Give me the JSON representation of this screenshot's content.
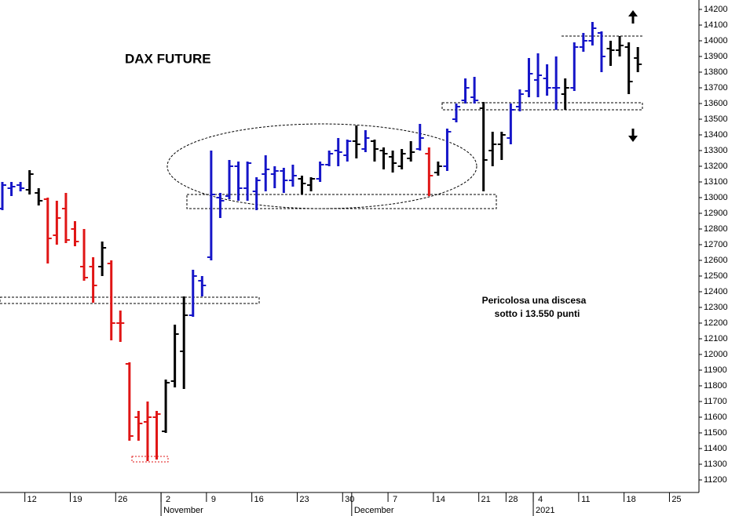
{
  "chart_data": {
    "type": "ohlc",
    "title": "DAX FUTURE",
    "annotation": [
      "Pericolosa una discesa",
      "sotto i 13.550 punti"
    ],
    "categories": [
      null,
      null,
      null,
      "12",
      null,
      null,
      null,
      null,
      "19",
      null,
      null,
      null,
      null,
      "26",
      null,
      null,
      null,
      null,
      "2",
      null,
      null,
      null,
      null,
      "9",
      null,
      null,
      null,
      null,
      "16",
      null,
      null,
      null,
      null,
      "23",
      null,
      null,
      null,
      null,
      "30",
      null,
      null,
      null,
      null,
      "7",
      null,
      null,
      null,
      null,
      "14",
      null,
      null,
      null,
      null,
      "21",
      null,
      null,
      "28",
      null,
      null,
      "4",
      null,
      null,
      null,
      null,
      "11",
      null,
      null,
      null,
      null,
      "18",
      null,
      null,
      null,
      null,
      "25"
    ],
    "groups": [
      {
        "label": "November",
        "start": 18
      },
      {
        "label": "December",
        "start": 39
      },
      {
        "label": "2021",
        "start": 59
      }
    ],
    "open": [
      12930,
      13060,
      13080,
      13050,
      13030,
      12990,
      12760,
      12930,
      12800,
      12560,
      12560,
      12560,
      12580,
      12200,
      11940,
      11600,
      11570,
      11600,
      11510,
      11830,
      12020,
      12250,
      12470,
      12620,
      13000,
      13010,
      13200,
      13060,
      13040,
      13150,
      13150,
      13170,
      13110,
      13120,
      13080,
      13120,
      13210,
      13300,
      13270,
      13360,
      13310,
      13360,
      13300,
      13260,
      13200,
      13250,
      13310,
      13280,
      13160,
      13200,
      13500,
      13620,
      13640,
      13570,
      13300,
      13340,
      13380,
      13580,
      13680,
      13750,
      13760,
      13700,
      13660,
      13700,
      13960,
      14000,
      14050,
      13950,
      13940,
      13960,
      13890,
      null,
      null,
      null,
      null
    ],
    "high": [
      13100,
      13100,
      13100,
      13175,
      13060,
      13000,
      12980,
      13030,
      12850,
      12800,
      12620,
      12720,
      12600,
      12280,
      11950,
      11640,
      11700,
      11640,
      11840,
      12190,
      12370,
      12540,
      12500,
      13300,
      13030,
      13240,
      13230,
      13230,
      13130,
      13270,
      13200,
      13190,
      13210,
      13140,
      13130,
      13230,
      13300,
      13380,
      13370,
      13460,
      13430,
      13370,
      13320,
      13300,
      13310,
      13360,
      13470,
      13320,
      13230,
      13440,
      13600,
      13760,
      13770,
      13610,
      13420,
      13420,
      13600,
      13690,
      13890,
      13920,
      13850,
      13900,
      13760,
      13990,
      14050,
      14120,
      14060,
      14000,
      14030,
      13990,
      13960,
      null,
      null,
      null,
      null
    ],
    "low": [
      12920,
      13010,
      13040,
      13020,
      12950,
      12580,
      12700,
      12710,
      12690,
      12470,
      12330,
      12500,
      12090,
      12080,
      11450,
      11450,
      11320,
      11330,
      11500,
      11790,
      11780,
      12240,
      12370,
      12600,
      12870,
      12990,
      12980,
      12980,
      12920,
      13040,
      13060,
      13030,
      13070,
      13020,
      13040,
      13100,
      13200,
      13200,
      13230,
      13250,
      13290,
      13230,
      13180,
      13160,
      13180,
      13230,
      13300,
      13010,
      13140,
      13170,
      13480,
      13600,
      13600,
      13040,
      13200,
      13240,
      13340,
      13550,
      13640,
      13640,
      13650,
      13560,
      13560,
      13680,
      13930,
      13970,
      13800,
      13840,
      13900,
      13660,
      13800,
      null,
      null,
      null,
      null
    ],
    "close": [
      13080,
      13070,
      13060,
      13150,
      12980,
      12740,
      12870,
      12730,
      12720,
      12490,
      12440,
      12680,
      12200,
      12200,
      11480,
      11560,
      11600,
      11620,
      11820,
      12130,
      12250,
      12500,
      12440,
      13020,
      12980,
      13200,
      13060,
      13220,
      13110,
      13180,
      13170,
      13110,
      13140,
      13090,
      13120,
      13210,
      13280,
      13290,
      13360,
      13340,
      13380,
      13310,
      13280,
      13220,
      13280,
      13290,
      13380,
      13140,
      13200,
      13420,
      13580,
      13700,
      13620,
      13240,
      13340,
      13400,
      13560,
      13660,
      13790,
      13780,
      13700,
      13700,
      13700,
      13960,
      14000,
      14080,
      13900,
      13940,
      13970,
      13740,
      13850,
      null,
      null,
      null,
      null
    ],
    "bar_colors": [
      "#1515c8",
      "#1515c8",
      "#1515c8",
      "#000000",
      "#000000",
      "#e01515",
      "#e01515",
      "#e01515",
      "#e01515",
      "#e01515",
      "#e01515",
      "#000000",
      "#e01515",
      "#e01515",
      "#e01515",
      "#e01515",
      "#e01515",
      "#e01515",
      "#000000",
      "#000000",
      "#000000",
      "#1515c8",
      "#1515c8",
      "#1515c8",
      "#1515c8",
      "#1515c8",
      "#1515c8",
      "#1515c8",
      "#1515c8",
      "#1515c8",
      "#1515c8",
      "#1515c8",
      "#1515c8",
      "#000000",
      "#000000",
      "#1515c8",
      "#1515c8",
      "#1515c8",
      "#1515c8",
      "#000000",
      "#1515c8",
      "#000000",
      "#000000",
      "#000000",
      "#000000",
      "#000000",
      "#1515c8",
      "#e01515",
      "#000000",
      "#1515c8",
      "#1515c8",
      "#1515c8",
      "#1515c8",
      "#000000",
      "#000000",
      "#000000",
      "#1515c8",
      "#1515c8",
      "#1515c8",
      "#1515c8",
      "#1515c8",
      "#1515c8",
      "#000000",
      "#1515c8",
      "#1515c8",
      "#1515c8",
      "#1515c8",
      "#000000",
      "#000000",
      "#000000",
      "#000000",
      null,
      null,
      null,
      null
    ],
    "ylim": [
      11120,
      14260
    ],
    "yticks": [
      11200,
      11300,
      11400,
      11500,
      11600,
      11700,
      11800,
      11900,
      12000,
      12100,
      12200,
      12300,
      12400,
      12500,
      12600,
      12700,
      12800,
      12900,
      13000,
      13100,
      13200,
      13300,
      13400,
      13500,
      13600,
      13700,
      13800,
      13900,
      14000,
      14100,
      14200
    ]
  }
}
